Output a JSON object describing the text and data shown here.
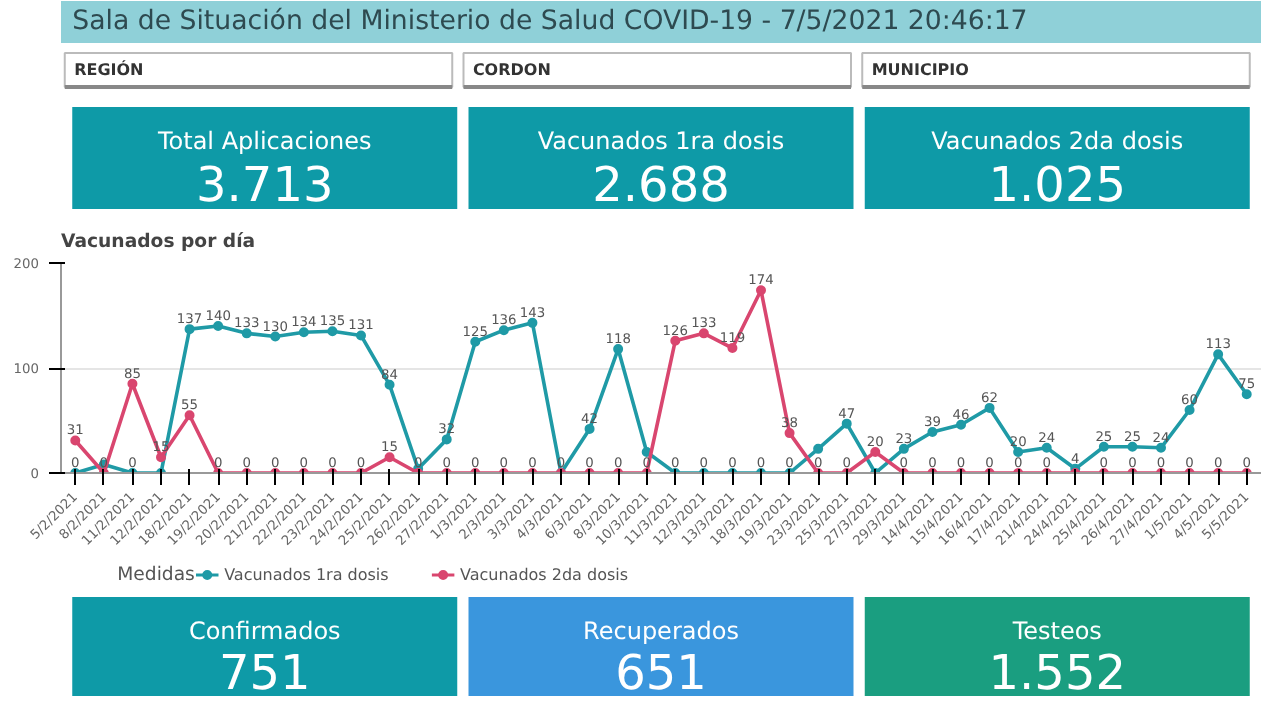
{
  "chart_data": [
    {
      "type": "other",
      "title": "Sala de Situación del Ministerio de Salud COVID-19 - 7/5/2021 20:46:17",
      "annotations": [
        "REGIÓN",
        "CORDON",
        "MUNICIPIO",
        "Total Aplicaciones",
        "3.713",
        "Vacunados 1ra dosis",
        "2.688",
        "Vacunados 2da dosis",
        "1.025"
      ],
      "colors": [
        "#0e9aa7",
        "#0e9aa7",
        "#0e9aa7"
      ]
    },
    {
      "type": "line",
      "title": "Vacunados por día",
      "categories": [
        "5/2/2021",
        "8/2/2021",
        "11/2/2021",
        "12/2/2021",
        "18/2/2021",
        "19/2/2021",
        "20/2/2021",
        "21/2/2021",
        "22/2/2021",
        "23/2/2021",
        "24/2/2021",
        "25/2/2021",
        "26/2/2021",
        "27/2/2021",
        "1/3/2021",
        "2/3/2021",
        "3/3/2021",
        "4/3/2021",
        "6/3/2021",
        "8/3/2021",
        "10/3/2021",
        "11/3/2021",
        "12/3/2021",
        "13/3/2021",
        "18/3/2021",
        "19/3/2021",
        "23/3/2021",
        "25/3/2021",
        "27/3/2021",
        "29/3/2021",
        "14/4/2021",
        "15/4/2021",
        "16/4/2021",
        "17/4/2021",
        "21/4/2021",
        "24/4/2021",
        "25/4/2021",
        "26/4/2021",
        "27/4/2021",
        "1/5/2021",
        "4/5/2021",
        "5/5/2021"
      ],
      "series": [
        {
          "name": "Vacunados 1ra dosis",
          "color": "#1f9aa6",
          "values": [
            0,
            8,
            0,
            0,
            137,
            140,
            133,
            130,
            134,
            135,
            131,
            84,
            4,
            32,
            125,
            136,
            143,
            0,
            42,
            118,
            20,
            0,
            0,
            0,
            0,
            0,
            23,
            47,
            0,
            23,
            39,
            46,
            62,
            20,
            24,
            4,
            25,
            25,
            24,
            60,
            113,
            75
          ],
          "value_labels": [
            "0",
            null,
            "0",
            null,
            "137",
            "140",
            "133",
            "130",
            "134",
            "135",
            "131",
            "84",
            null,
            "32",
            "125",
            "136",
            "143",
            null,
            "42",
            "118",
            null,
            "0",
            "0",
            "0",
            "0",
            "0",
            null,
            "47",
            null,
            "23",
            "39",
            "46",
            "62",
            "20",
            "24",
            "4",
            "25",
            "25",
            "24",
            "60",
            "113",
            "75"
          ]
        },
        {
          "name": "Vacunados 2da dosis",
          "color": "#d9466f",
          "values": [
            31,
            0,
            85,
            15,
            55,
            0,
            0,
            0,
            0,
            0,
            0,
            15,
            0,
            0,
            0,
            0,
            0,
            0,
            0,
            0,
            0,
            126,
            133,
            119,
            174,
            38,
            0,
            0,
            20,
            0,
            0,
            0,
            0,
            0,
            0,
            0,
            0,
            0,
            0,
            0,
            0,
            0
          ],
          "value_labels": [
            "31",
            "0",
            "85",
            "15",
            "55",
            "0",
            "0",
            "0",
            "0",
            "0",
            "0",
            "15",
            "0",
            "0",
            "0",
            "0",
            "0",
            "0",
            "0",
            "0",
            "0",
            "126",
            "133",
            "119",
            "174",
            "38",
            "0",
            "0",
            "20",
            "0",
            "0",
            "0",
            "0",
            "0",
            "0",
            null,
            "0",
            "0",
            "0",
            "0",
            "0",
            "0"
          ]
        }
      ],
      "ylim": [
        0,
        200
      ],
      "yticks": [
        0,
        100,
        200
      ],
      "grid": "y",
      "marker": "circle",
      "legend": "bottom",
      "legend_title": "Medidas"
    },
    {
      "type": "other",
      "annotations": [
        "Confirmados",
        "751",
        "Recuperados",
        "651",
        "Testeos",
        "1.552"
      ],
      "colors": [
        "#0e9aa7",
        "#3a96dd",
        "#1a9e80"
      ]
    }
  ]
}
